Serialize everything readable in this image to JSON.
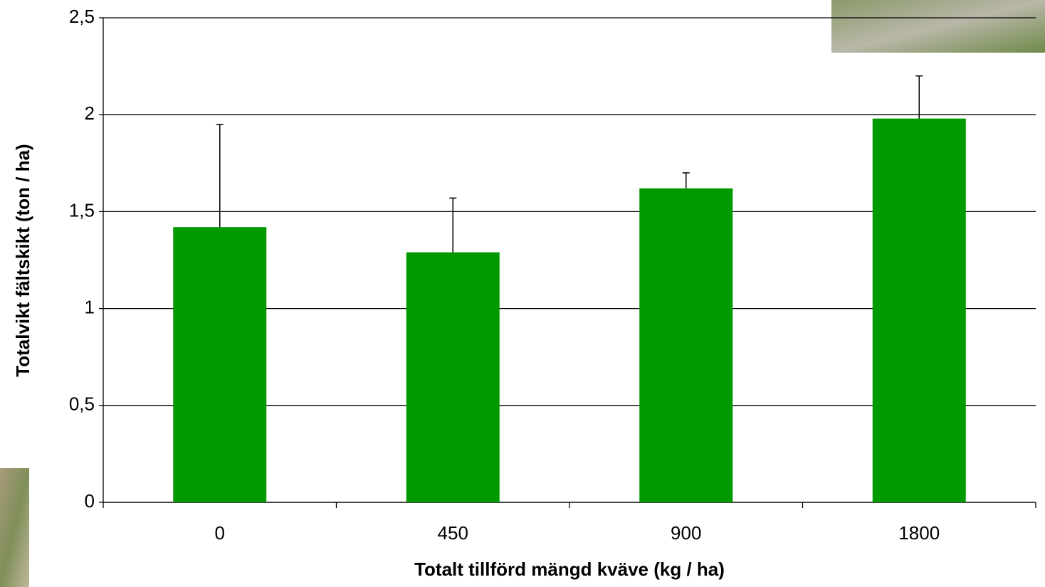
{
  "chart_data": {
    "type": "bar",
    "x_label": "Totalt tillförd mängd kväve (kg / ha)",
    "y_label": "Totalvikt fältskikt (ton / ha)",
    "categories": [
      "0",
      "450",
      "900",
      "1800"
    ],
    "values": [
      1.42,
      1.29,
      1.62,
      1.98
    ],
    "errors": [
      0.53,
      0.28,
      0.08,
      0.22
    ],
    "color": "#009900",
    "ylim": [
      0,
      2.5
    ],
    "yticks": [
      0,
      {
        "value": 0.5,
        "label": "0,5"
      },
      1,
      {
        "value": 1.5,
        "label": "1,5"
      },
      2,
      {
        "value": 2.5,
        "label": "2,5"
      }
    ],
    "grid": true
  }
}
